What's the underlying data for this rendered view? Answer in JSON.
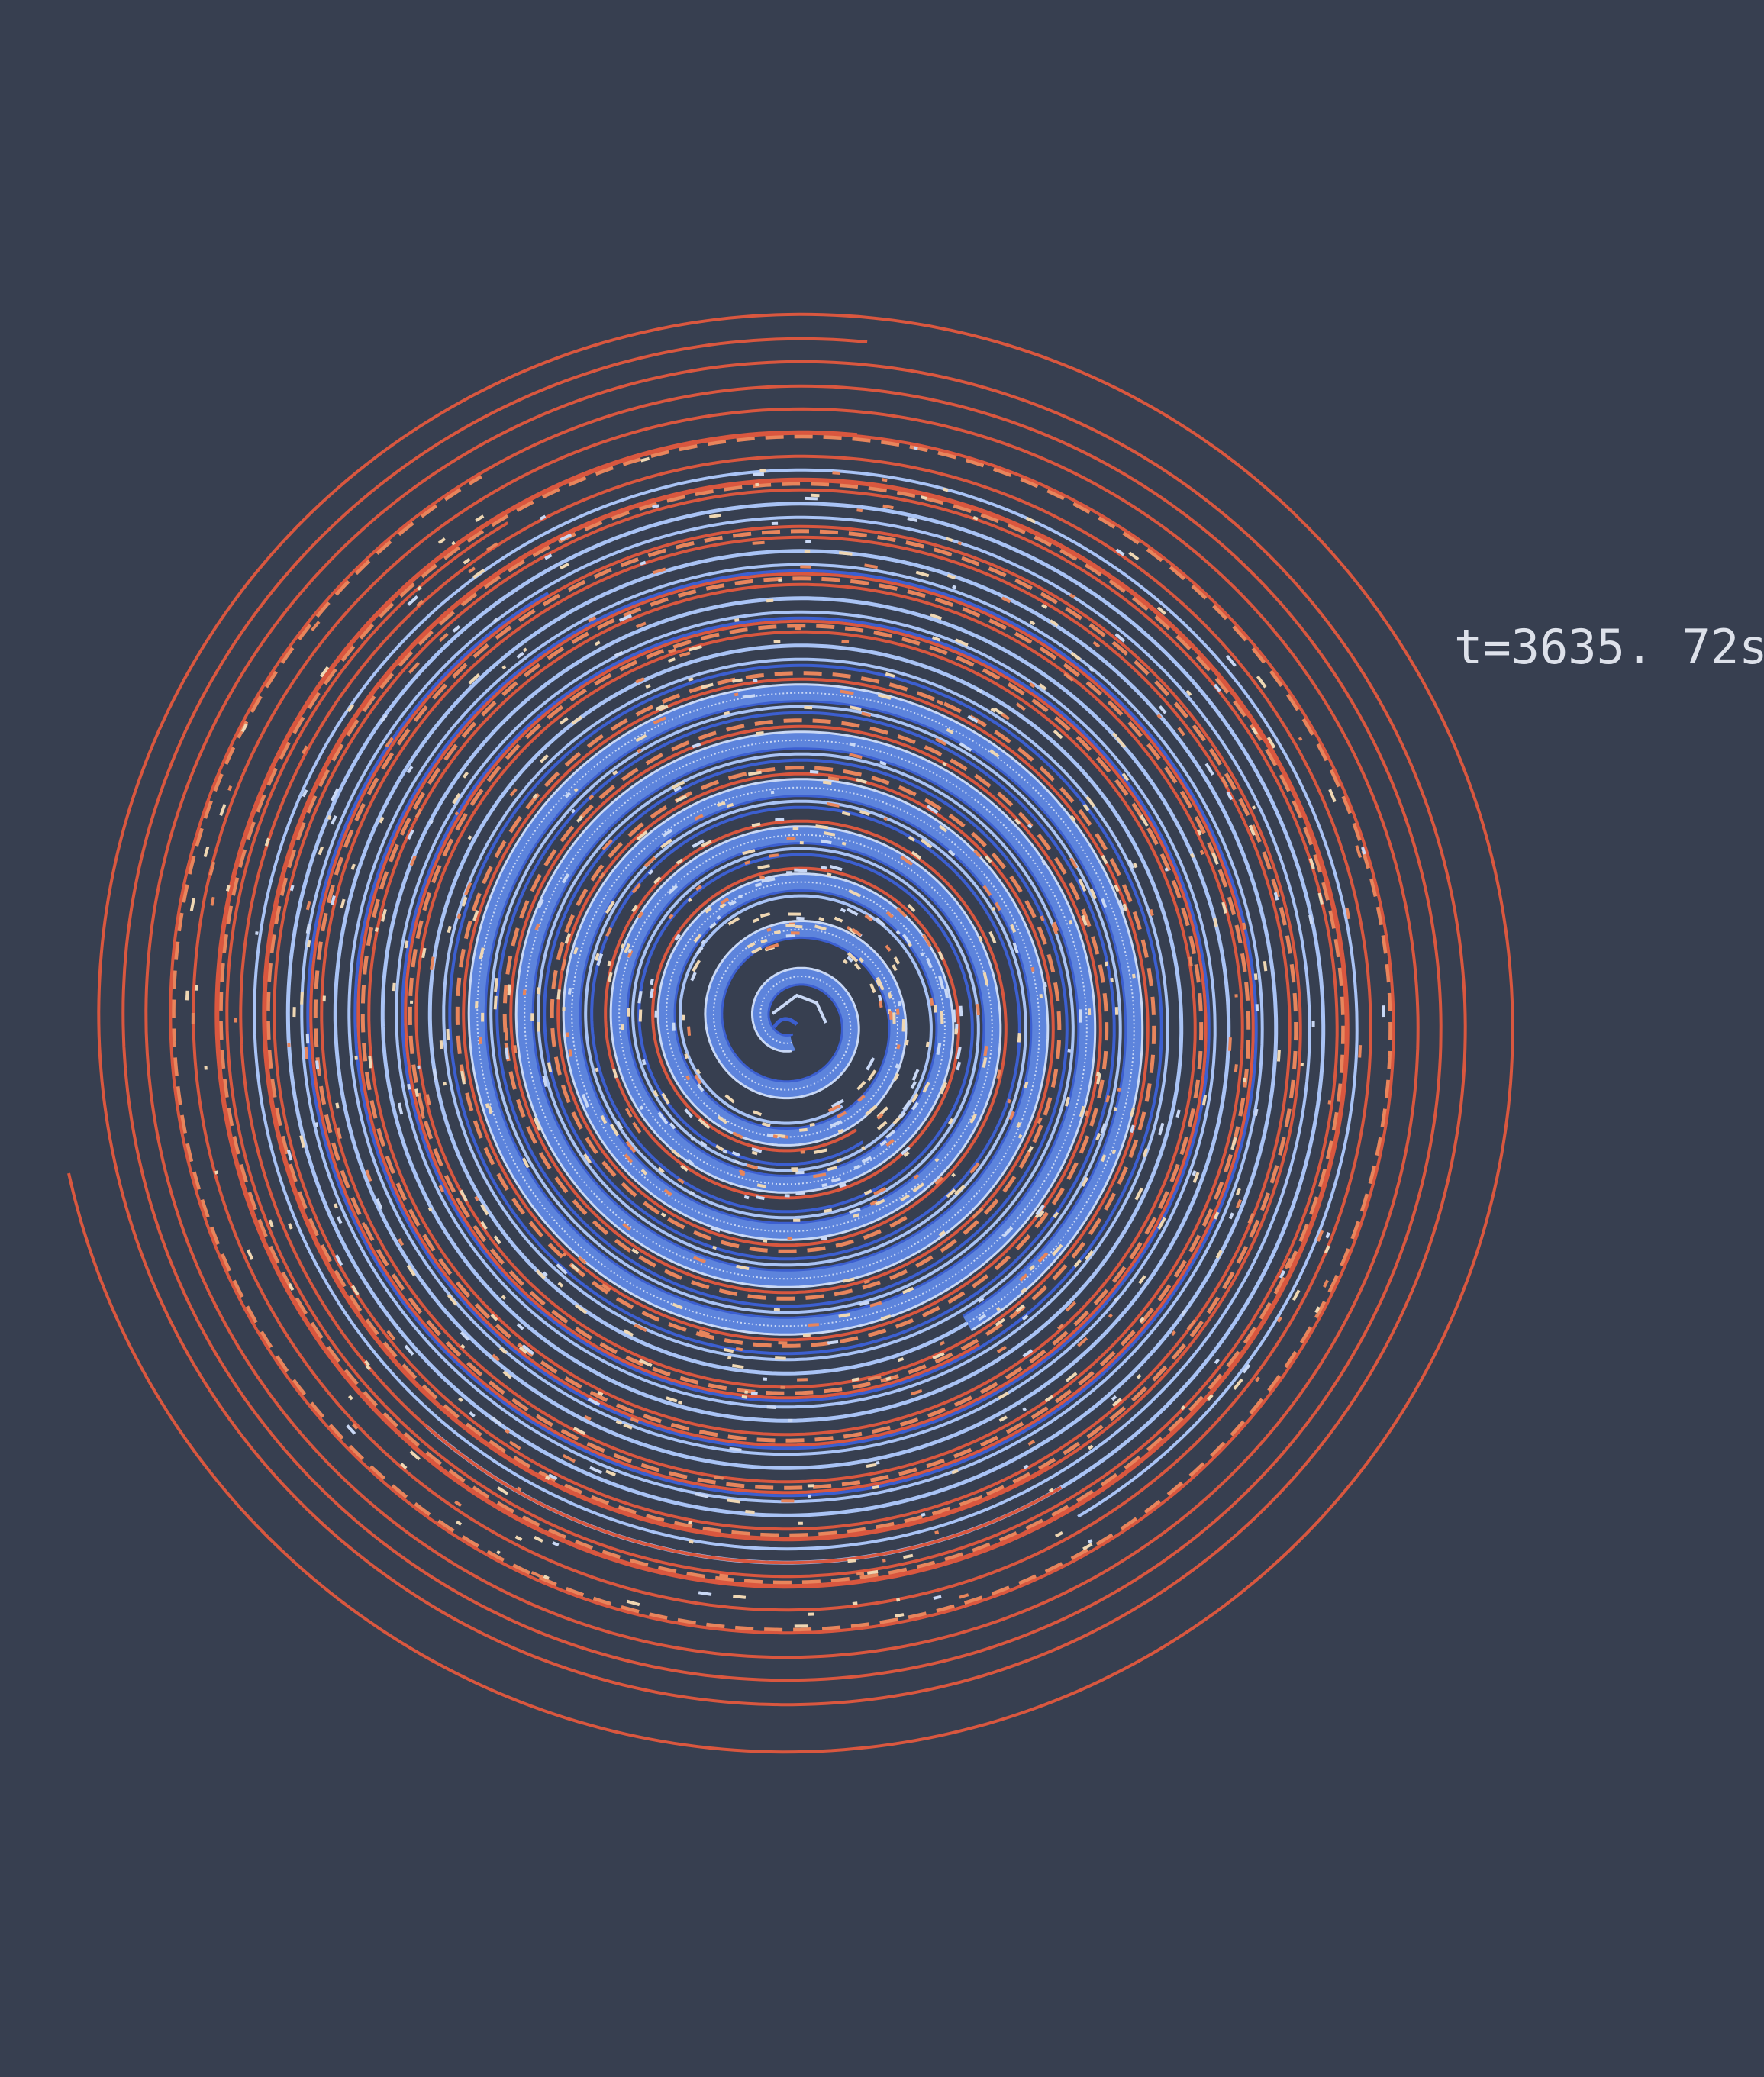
{
  "canvas": {
    "background": "#373f50"
  },
  "timestamp": {
    "label": "t=3635. 72s",
    "color": "#dde1ea"
  },
  "spiral": {
    "palette": {
      "outer_red": "#d9573f",
      "dash_orange": "#e8855c",
      "light_blue": "#a9c3f5",
      "pale_blue": "#c9d8f5",
      "mid_blue": "#5d84dc",
      "deep_blue": "#3c5fd0",
      "cream": "#efd7b3"
    }
  }
}
